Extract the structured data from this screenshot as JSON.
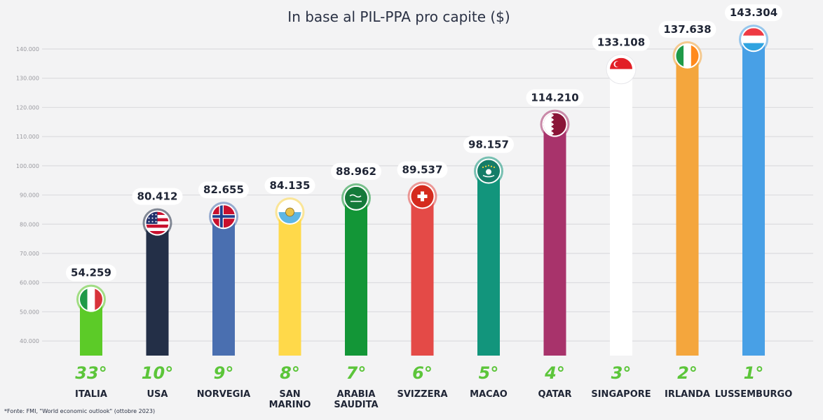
{
  "chart_data": {
    "type": "bar",
    "title": "In base al PIL-PPA pro capite ($)",
    "ylim": [
      35000,
      150000
    ],
    "yticks": [
      40000,
      50000,
      60000,
      70000,
      80000,
      90000,
      100000,
      110000,
      120000,
      130000,
      140000
    ],
    "ytick_labels": [
      "40.000",
      "50.000",
      "60.000",
      "70.000",
      "80.000",
      "90.000",
      "100.000",
      "110.000",
      "120.000",
      "130.000",
      "140.000"
    ],
    "grid": true,
    "categories": [
      "ITALIA",
      "USA",
      "NORVEGIA",
      "SAN MARINO",
      "ARABIA SAUDITA",
      "SVIZZERA",
      "MACAO",
      "QATAR",
      "SINGAPORE",
      "IRLANDA",
      "LUSSEMBURGO"
    ],
    "category_lines": [
      [
        "ITALIA"
      ],
      [
        "USA"
      ],
      [
        "NORVEGIA"
      ],
      [
        "SAN",
        "MARINO"
      ],
      [
        "ARABIA",
        "SAUDITA"
      ],
      [
        "SVIZZERA"
      ],
      [
        "MACAO"
      ],
      [
        "QATAR"
      ],
      [
        "SINGAPORE"
      ],
      [
        "IRLANDA"
      ],
      [
        "LUSSEMBURGO"
      ]
    ],
    "values": [
      54259,
      80412,
      82655,
      84135,
      88962,
      89537,
      98157,
      114210,
      133108,
      137638,
      143304
    ],
    "value_labels": [
      "54.259",
      "80.412",
      "82.655",
      "84.135",
      "88.962",
      "89.537",
      "98.157",
      "114.210",
      "133.108",
      "137.638",
      "143.304"
    ],
    "ranks": [
      "33°",
      "10°",
      "9°",
      "8°",
      "7°",
      "6°",
      "5°",
      "4°",
      "3°",
      "2°",
      "1°"
    ],
    "colors": [
      "#5ccb28",
      "#232f47",
      "#4a6fb0",
      "#ffd94a",
      "#139637",
      "#e44a47",
      "#12957c",
      "#a8336b",
      "#ffffff",
      "#f4a63d",
      "#48a0e6"
    ],
    "flags": [
      "italy-flag-icon",
      "usa-flag-icon",
      "norway-flag-icon",
      "san-marino-flag-icon",
      "saudi-arabia-flag-icon",
      "switzerland-flag-icon",
      "macao-flag-icon",
      "qatar-flag-icon",
      "singapore-flag-icon",
      "ireland-flag-icon",
      "luxembourg-flag-icon"
    ]
  },
  "source": "*Fonte: FMI, \"World economic outlook\" (ottobre 2023)"
}
